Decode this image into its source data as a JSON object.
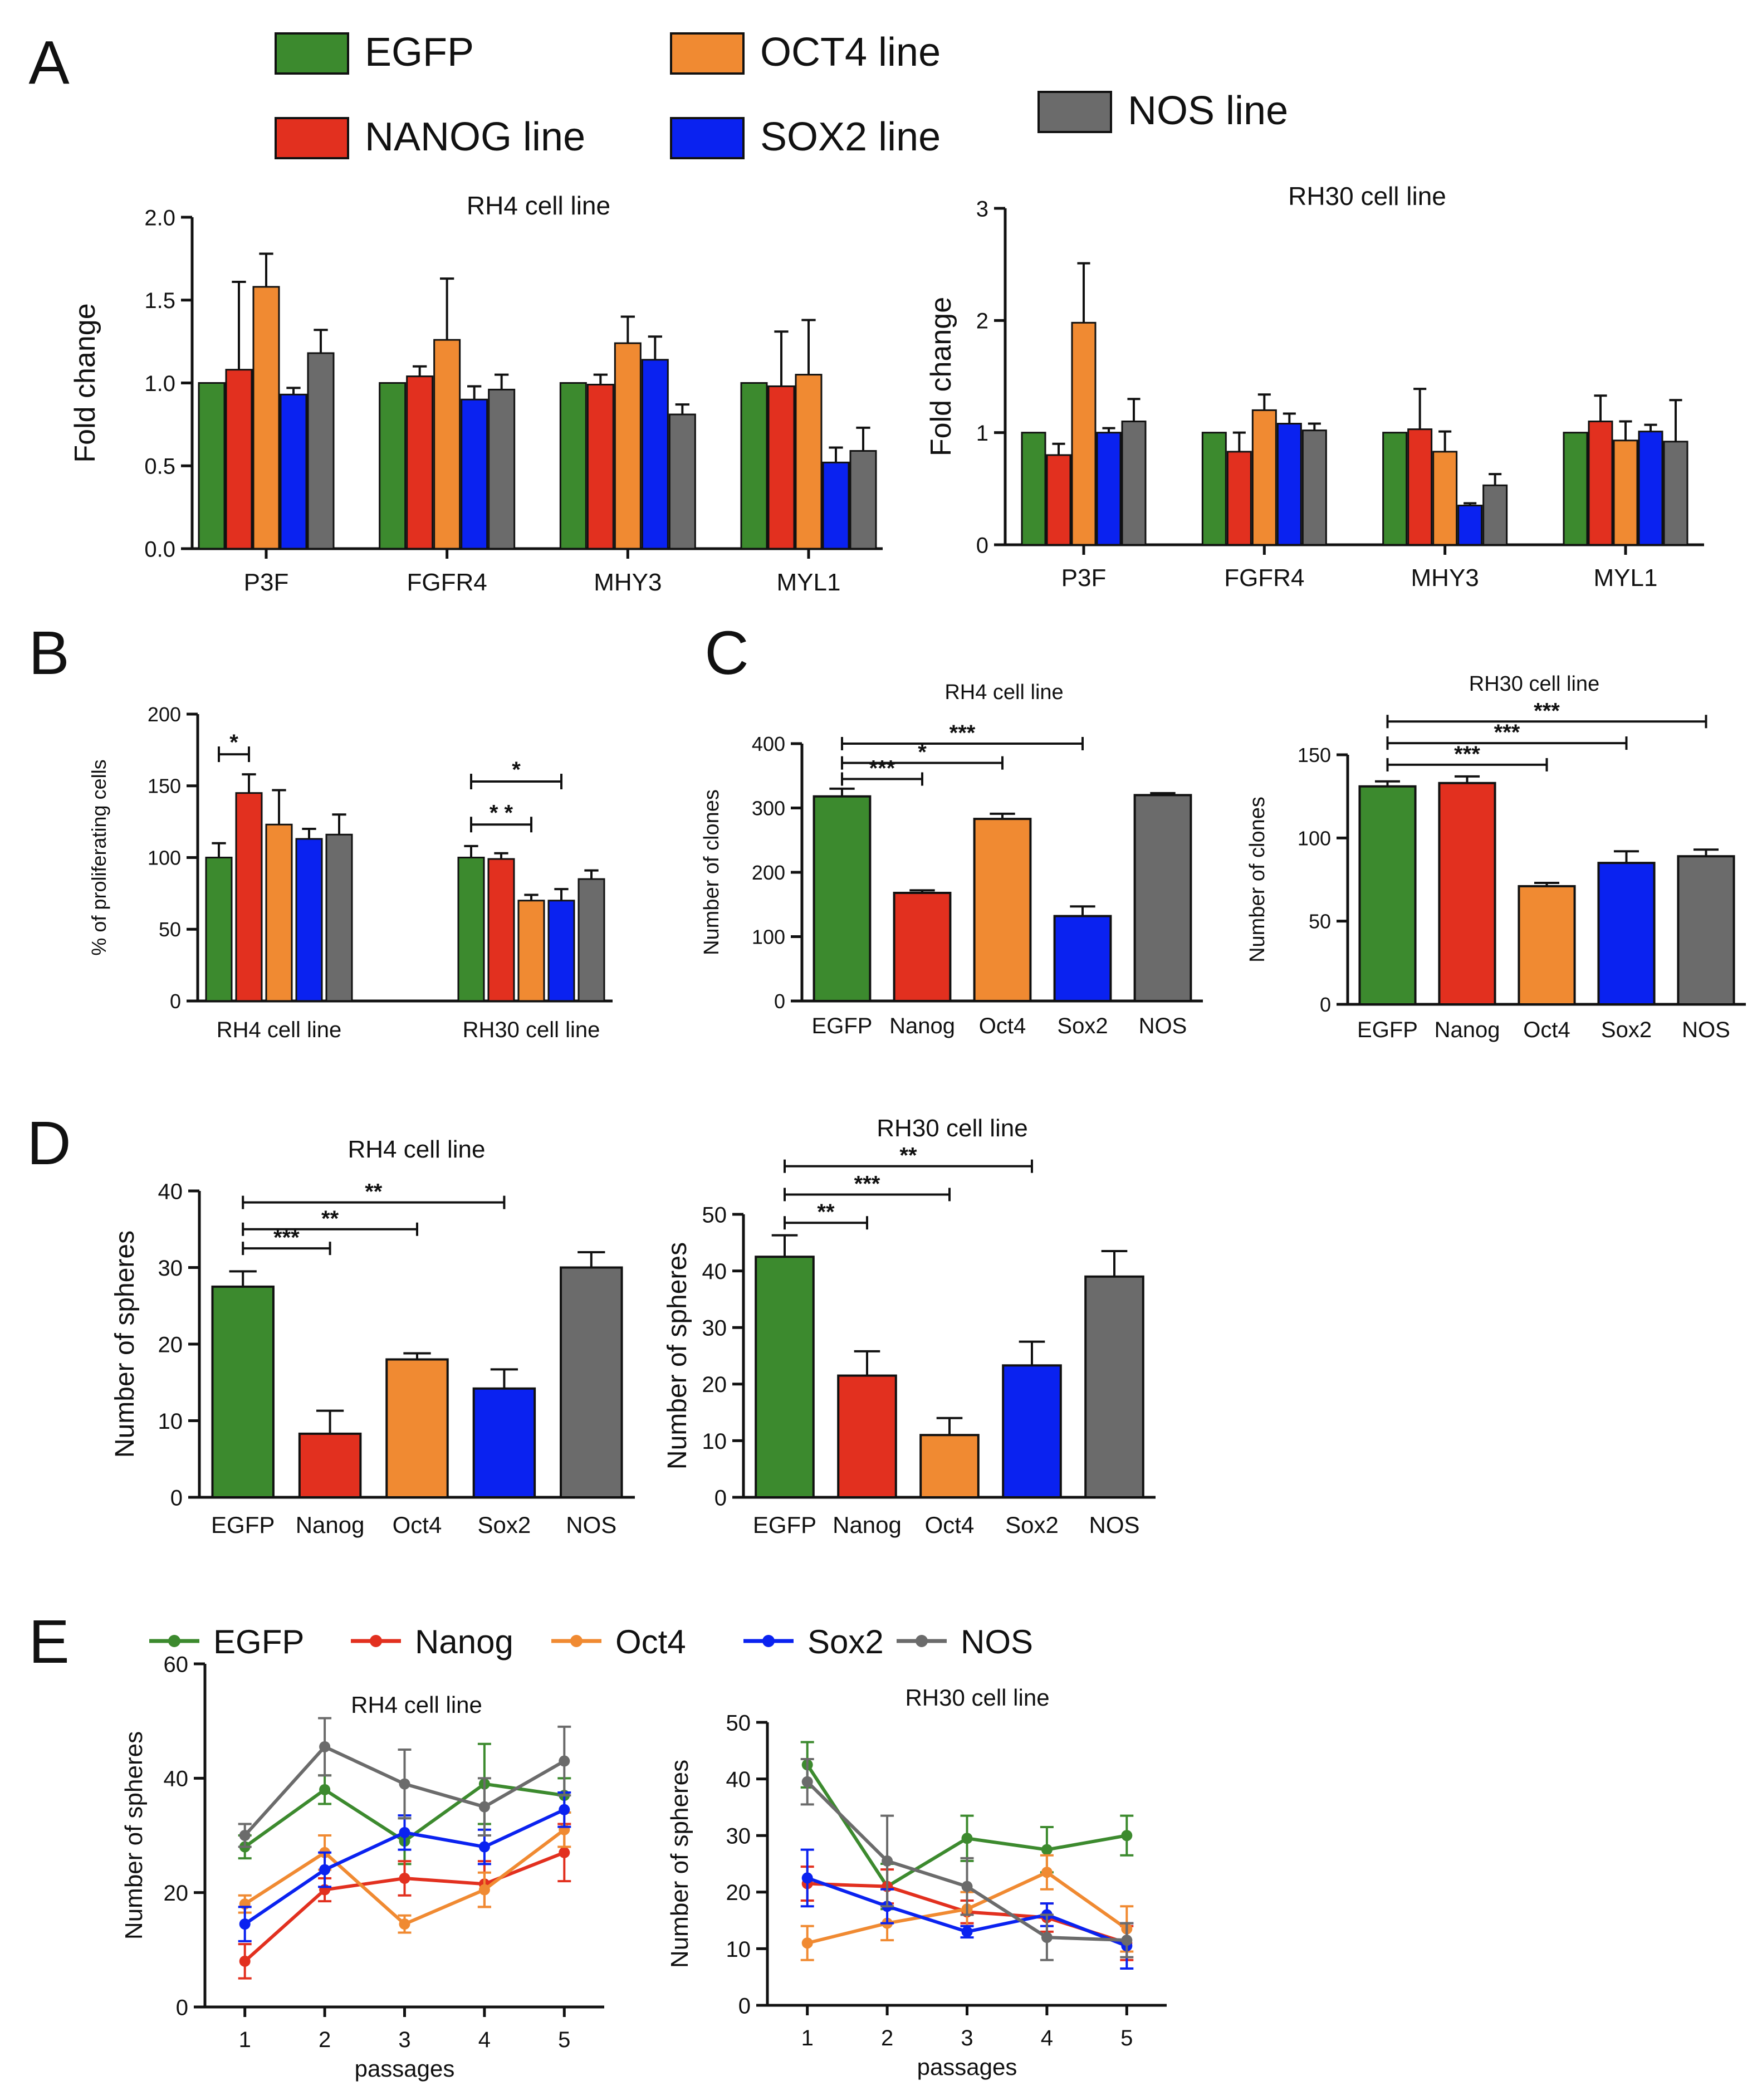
{
  "colors": {
    "EGFP": "#3c8a2e",
    "NANOG": "#e2301f",
    "OCT4": "#f08a32",
    "SOX2": "#0a22f0",
    "NOS": "#6b6b6b"
  },
  "panel_labels": [
    "A",
    "B",
    "C",
    "D",
    "E"
  ],
  "legend_a": {
    "items": [
      {
        "label": "EGFP",
        "key": "EGFP"
      },
      {
        "label": "NANOG line",
        "key": "NANOG"
      },
      {
        "label": "OCT4 line",
        "key": "OCT4"
      },
      {
        "label": "SOX2 line",
        "key": "SOX2"
      },
      {
        "label": "NOS line",
        "key": "NOS"
      }
    ]
  },
  "legend_e": {
    "items": [
      {
        "label": "EGFP",
        "key": "EGFP"
      },
      {
        "label": "Nanog",
        "key": "NANOG"
      },
      {
        "label": "Oct4",
        "key": "OCT4"
      },
      {
        "label": "Sox2",
        "key": "SOX2"
      },
      {
        "label": "NOS",
        "key": "NOS"
      }
    ]
  },
  "chart_data": [
    {
      "id": "A_RH4",
      "panel": "A",
      "type": "bar",
      "title": "RH4 cell line",
      "ylabel": "Fold change",
      "ylim": [
        0,
        2.0
      ],
      "yticks": [
        0,
        0.5,
        1.0,
        1.5,
        2.0
      ],
      "ytick_labels": [
        "0.0",
        "0.5",
        "1.0",
        "1.5",
        "2.0"
      ],
      "categories": [
        "P3F",
        "FGFR4",
        "MHY3",
        "MYL1"
      ],
      "series": [
        {
          "name": "EGFP",
          "key": "EGFP",
          "values": [
            1.0,
            1.0,
            1.0,
            1.0
          ],
          "errors": [
            0,
            0,
            0,
            0
          ]
        },
        {
          "name": "NANOG line",
          "key": "NANOG",
          "values": [
            1.08,
            1.04,
            0.99,
            0.98
          ],
          "errors": [
            0.53,
            0.06,
            0.06,
            0.33
          ]
        },
        {
          "name": "OCT4 line",
          "key": "OCT4",
          "values": [
            1.58,
            1.26,
            1.24,
            1.05
          ],
          "errors": [
            0.2,
            0.37,
            0.16,
            0.33
          ]
        },
        {
          "name": "SOX2 line",
          "key": "SOX2",
          "values": [
            0.93,
            0.9,
            1.14,
            0.52
          ],
          "errors": [
            0.04,
            0.08,
            0.14,
            0.09
          ]
        },
        {
          "name": "NOS line",
          "key": "NOS",
          "values": [
            1.18,
            0.96,
            0.81,
            0.59
          ],
          "errors": [
            0.14,
            0.09,
            0.06,
            0.14
          ]
        }
      ]
    },
    {
      "id": "A_RH30",
      "panel": "A",
      "type": "bar",
      "title": "RH30 cell line",
      "ylabel": "Fold change",
      "ylim": [
        0,
        3
      ],
      "yticks": [
        0,
        1,
        2,
        3
      ],
      "ytick_labels": [
        "0",
        "1",
        "2",
        "3"
      ],
      "categories": [
        "P3F",
        "FGFR4",
        "MHY3",
        "MYL1"
      ],
      "series": [
        {
          "name": "EGFP",
          "key": "EGFP",
          "values": [
            1.0,
            1.0,
            1.0,
            1.0
          ],
          "errors": [
            0,
            0,
            0,
            0
          ]
        },
        {
          "name": "NANOG line",
          "key": "NANOG",
          "values": [
            0.8,
            0.83,
            1.03,
            1.1
          ],
          "errors": [
            0.1,
            0.17,
            0.36,
            0.23
          ]
        },
        {
          "name": "OCT4 line",
          "key": "OCT4",
          "values": [
            1.98,
            1.2,
            0.83,
            0.93
          ],
          "errors": [
            0.53,
            0.14,
            0.18,
            0.17
          ]
        },
        {
          "name": "SOX2 line",
          "key": "SOX2",
          "values": [
            1.0,
            1.08,
            0.35,
            1.01
          ],
          "errors": [
            0.04,
            0.09,
            0.02,
            0.06
          ]
        },
        {
          "name": "NOS line",
          "key": "NOS",
          "values": [
            1.1,
            1.02,
            0.53,
            0.92
          ],
          "errors": [
            0.2,
            0.06,
            0.1,
            0.37
          ]
        }
      ]
    },
    {
      "id": "B",
      "panel": "B",
      "type": "bar",
      "title": "",
      "ylabel": "% of proliferating cells",
      "ylim": [
        0,
        200
      ],
      "yticks": [
        0,
        50,
        100,
        150,
        200
      ],
      "ytick_labels": [
        "0",
        "50",
        "100",
        "150",
        "200"
      ],
      "categories": [
        "RH4 cell line",
        "RH30 cell line"
      ],
      "series": [
        {
          "name": "EGFP",
          "key": "EGFP",
          "values": [
            100,
            100
          ],
          "errors": [
            10,
            8
          ]
        },
        {
          "name": "NANOG line",
          "key": "NANOG",
          "values": [
            145,
            99
          ],
          "errors": [
            13,
            4
          ]
        },
        {
          "name": "OCT4 line",
          "key": "OCT4",
          "values": [
            123,
            70
          ],
          "errors": [
            24,
            4
          ]
        },
        {
          "name": "SOX2 line",
          "key": "SOX2",
          "values": [
            113,
            70
          ],
          "errors": [
            7,
            8
          ]
        },
        {
          "name": "NOS line",
          "key": "NOS",
          "values": [
            116,
            85
          ],
          "errors": [
            14,
            6
          ]
        }
      ],
      "significance": [
        {
          "label": "*",
          "from": [
            0,
            0
          ],
          "to": [
            0,
            1
          ],
          "level": 172
        },
        {
          "label": "* *",
          "from": [
            1,
            0
          ],
          "to": [
            1,
            2
          ],
          "level": 123
        },
        {
          "label": "*",
          "from": [
            1,
            0
          ],
          "to": [
            1,
            3
          ],
          "level": 153
        }
      ]
    },
    {
      "id": "C_RH4",
      "panel": "C",
      "type": "bar",
      "title": "RH4 cell line",
      "ylabel": "Number of clones",
      "ylim": [
        0,
        400
      ],
      "yticks": [
        0,
        100,
        200,
        300,
        400
      ],
      "ytick_labels": [
        "0",
        "100",
        "200",
        "300",
        "400"
      ],
      "categories": [
        "EGFP",
        "Nanog",
        "Oct4",
        "Sox2",
        "NOS"
      ],
      "values": [
        318,
        168,
        283,
        132,
        320
      ],
      "errors": [
        12,
        4,
        8,
        15,
        3
      ],
      "series_keys": [
        "EGFP",
        "NANOG",
        "OCT4",
        "SOX2",
        "NOS"
      ],
      "significance": [
        {
          "label": "***",
          "from": 0,
          "to": 1,
          "level": 345
        },
        {
          "label": "*",
          "from": 0,
          "to": 2,
          "level": 370
        },
        {
          "label": "***",
          "from": 0,
          "to": 3,
          "level": 400
        }
      ]
    },
    {
      "id": "C_RH30",
      "panel": "C",
      "type": "bar",
      "title": "RH30 cell line",
      "ylabel": "Number of clones",
      "ylim": [
        0,
        150
      ],
      "yticks": [
        0,
        50,
        100,
        150
      ],
      "ytick_labels": [
        "0",
        "50",
        "100",
        "150"
      ],
      "categories": [
        "EGFP",
        "Nanog",
        "Oct4",
        "Sox2",
        "NOS"
      ],
      "values": [
        131,
        133,
        71,
        85,
        89
      ],
      "errors": [
        3,
        4,
        2,
        7,
        4
      ],
      "series_keys": [
        "EGFP",
        "NANOG",
        "OCT4",
        "SOX2",
        "NOS"
      ],
      "significance": [
        {
          "label": "***",
          "from": 0,
          "to": 2,
          "level": 144
        },
        {
          "label": "***",
          "from": 0,
          "to": 3,
          "level": 157
        },
        {
          "label": "***",
          "from": 0,
          "to": 4,
          "level": 170
        }
      ]
    },
    {
      "id": "D_RH4",
      "panel": "D",
      "type": "bar",
      "title": "RH4 cell line",
      "ylabel": "Number of spheres",
      "ylim": [
        0,
        40
      ],
      "yticks": [
        0,
        10,
        20,
        30,
        40
      ],
      "ytick_labels": [
        "0",
        "10",
        "20",
        "30",
        "40"
      ],
      "categories": [
        "EGFP",
        "Nanog",
        "Oct4",
        "Sox2",
        "NOS"
      ],
      "values": [
        27.5,
        8.3,
        18.0,
        14.2,
        30.0
      ],
      "errors": [
        2.0,
        3.0,
        0.8,
        2.5,
        2.0
      ],
      "series_keys": [
        "EGFP",
        "NANOG",
        "OCT4",
        "SOX2",
        "NOS"
      ],
      "significance": [
        {
          "label": "***",
          "from": 0,
          "to": 1,
          "level": 32.5
        },
        {
          "label": "**",
          "from": 0,
          "to": 2,
          "level": 35.0
        },
        {
          "label": "**",
          "from": 0,
          "to": 3,
          "level": 38.5
        }
      ]
    },
    {
      "id": "D_RH30",
      "panel": "D",
      "type": "bar",
      "title": "RH30 cell line",
      "ylabel": "Number of spheres",
      "ylim": [
        0,
        50
      ],
      "yticks": [
        0,
        10,
        20,
        30,
        40,
        50
      ],
      "ytick_labels": [
        "0",
        "10",
        "20",
        "30",
        "40",
        "50"
      ],
      "categories": [
        "EGFP",
        "Nanog",
        "Oct4",
        "Sox2",
        "NOS"
      ],
      "values": [
        42.5,
        21.5,
        11.0,
        23.3,
        39.0
      ],
      "errors": [
        3.8,
        4.3,
        3.0,
        4.2,
        4.5
      ],
      "series_keys": [
        "EGFP",
        "NANOG",
        "OCT4",
        "SOX2",
        "NOS"
      ],
      "significance": [
        {
          "label": "**",
          "from": 0,
          "to": 1,
          "level": 48.5
        },
        {
          "label": "***",
          "from": 0,
          "to": 2,
          "level": 53.5
        },
        {
          "label": "**",
          "from": 0,
          "to": 3,
          "level": 58.5
        }
      ]
    },
    {
      "id": "E_RH4",
      "panel": "E",
      "type": "line",
      "title": "RH4 cell line",
      "xlabel": "passages",
      "ylabel": "Number of spheres",
      "ylim": [
        0,
        60
      ],
      "xlim": [
        0.5,
        5.5
      ],
      "yticks": [
        0,
        20,
        40,
        60
      ],
      "ytick_labels": [
        "0",
        "20",
        "40",
        "60"
      ],
      "x": [
        1,
        2,
        3,
        4,
        5
      ],
      "xtick_labels": [
        "1",
        "2",
        "3",
        "4",
        "5"
      ],
      "series": [
        {
          "name": "EGFP",
          "key": "EGFP",
          "values": [
            28,
            38,
            29,
            39,
            37
          ],
          "errors": [
            2,
            2.5,
            4,
            7,
            3
          ]
        },
        {
          "name": "Nanog",
          "key": "NANOG",
          "values": [
            8,
            20.5,
            22.5,
            21.5,
            27
          ],
          "errors": [
            3,
            2,
            3,
            4,
            5
          ]
        },
        {
          "name": "Oct4",
          "key": "OCT4",
          "values": [
            18,
            27,
            14.5,
            20.5,
            31
          ],
          "errors": [
            1.5,
            3,
            1.5,
            3,
            3
          ]
        },
        {
          "name": "Sox2",
          "key": "SOX2",
          "values": [
            14.5,
            24,
            30.5,
            28,
            34.5
          ],
          "errors": [
            3,
            3,
            3,
            3,
            3
          ]
        },
        {
          "name": "NOS",
          "key": "NOS",
          "values": [
            30,
            45.5,
            39,
            35,
            43
          ],
          "errors": [
            2,
            5,
            6,
            5,
            6
          ]
        }
      ]
    },
    {
      "id": "E_RH30",
      "panel": "E",
      "type": "line",
      "title": "RH30 cell line",
      "xlabel": "passages",
      "ylabel": "Number of spheres",
      "ylim": [
        0,
        50
      ],
      "xlim": [
        0.5,
        5.5
      ],
      "yticks": [
        0,
        10,
        20,
        30,
        40,
        50
      ],
      "ytick_labels": [
        "0",
        "10",
        "20",
        "30",
        "40",
        "50"
      ],
      "x": [
        1,
        2,
        3,
        4,
        5
      ],
      "xtick_labels": [
        "1",
        "2",
        "3",
        "4",
        "5"
      ],
      "series": [
        {
          "name": "EGFP",
          "key": "EGFP",
          "values": [
            42.5,
            21,
            29.5,
            27.5,
            30
          ],
          "errors": [
            4,
            4,
            4,
            4,
            3.5
          ]
        },
        {
          "name": "Nanog",
          "key": "NANOG",
          "values": [
            21.5,
            21,
            16.5,
            15.5,
            11
          ],
          "errors": [
            3,
            3,
            2,
            2.5,
            3
          ]
        },
        {
          "name": "Oct4",
          "key": "OCT4",
          "values": [
            11,
            14.5,
            17,
            23.5,
            13.5
          ],
          "errors": [
            3,
            3,
            3,
            3,
            4
          ]
        },
        {
          "name": "Sox2",
          "key": "SOX2",
          "values": [
            22.5,
            17.5,
            13,
            16,
            10.5
          ],
          "errors": [
            5,
            3,
            1,
            2,
            4
          ]
        },
        {
          "name": "NOS",
          "key": "NOS",
          "values": [
            39.5,
            25.5,
            21,
            12,
            11.5
          ],
          "errors": [
            4,
            8,
            5,
            4,
            3
          ]
        }
      ]
    }
  ]
}
